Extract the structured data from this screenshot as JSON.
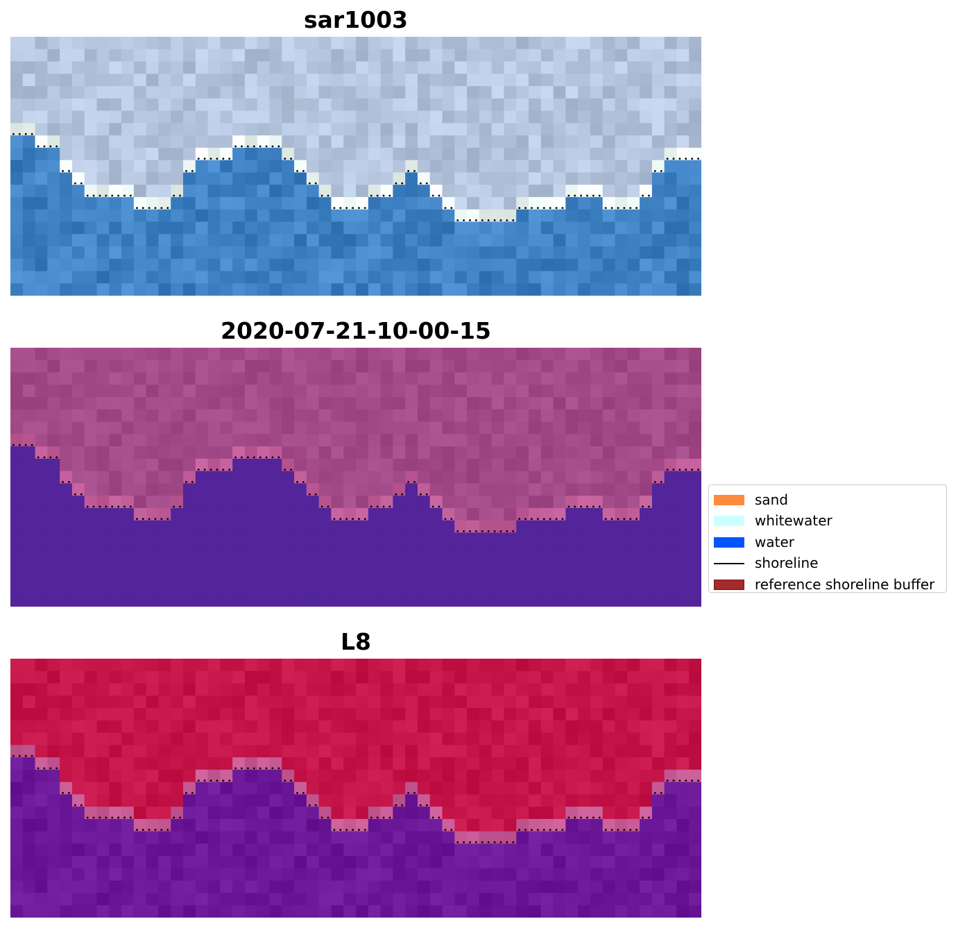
{
  "panels": [
    {
      "title": "sar1003",
      "style": "rgb"
    },
    {
      "title": "2020-07-21-10-00-15",
      "style": "classified"
    },
    {
      "title": "L8",
      "style": "index"
    }
  ],
  "legend": {
    "items": [
      {
        "label": "sand",
        "color": "#ff8a3d",
        "kind": "patch"
      },
      {
        "label": "whitewater",
        "color": "#ccffff",
        "kind": "patch"
      },
      {
        "label": "water",
        "color": "#0055ff",
        "kind": "patch"
      },
      {
        "label": "shoreline",
        "color": "#000000",
        "kind": "line"
      },
      {
        "label": "reference shoreline buffer",
        "color": "#a52a2a",
        "kind": "patch"
      }
    ]
  },
  "colors": {
    "water_rgb": "#3f82c4",
    "land_rgb": "#b4c4dc",
    "whitewater_rgb": "#eef8f4",
    "water_class": "#53249a",
    "land_class": "#a24a88",
    "edge_class": "#bf5c98",
    "water_index": "#6a1898",
    "land_index": "#c41448",
    "edge_index": "#c65a94",
    "shoreline": "#000000"
  }
}
